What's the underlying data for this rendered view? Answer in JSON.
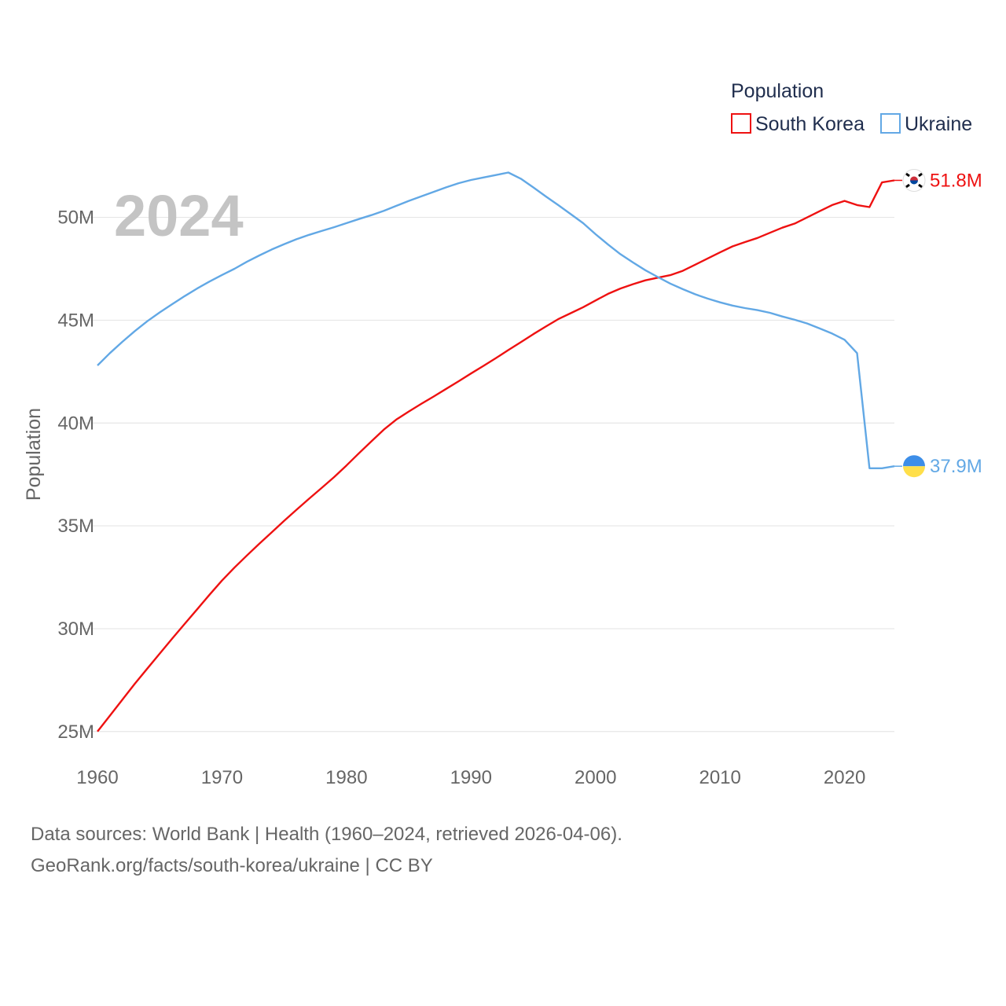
{
  "chart_data": {
    "type": "line",
    "year_label": "2024",
    "ylabel": "Population",
    "ylim": [
      23500000,
      53500000
    ],
    "xlim": [
      1960,
      2024
    ],
    "y_ticks": [
      25000000,
      30000000,
      35000000,
      40000000,
      45000000,
      50000000
    ],
    "y_tick_labels": [
      "25M",
      "30M",
      "35M",
      "40M",
      "45M",
      "50M"
    ],
    "x_ticks": [
      1960,
      1970,
      1980,
      1990,
      2000,
      2010,
      2020
    ],
    "x_tick_labels": [
      "1960",
      "1970",
      "1980",
      "1990",
      "2000",
      "2010",
      "2020"
    ],
    "legend": {
      "title": "Population",
      "position": "top-right"
    },
    "x": [
      1960,
      1961,
      1962,
      1963,
      1964,
      1965,
      1966,
      1967,
      1968,
      1969,
      1970,
      1971,
      1972,
      1973,
      1974,
      1975,
      1976,
      1977,
      1978,
      1979,
      1980,
      1981,
      1982,
      1983,
      1984,
      1985,
      1986,
      1987,
      1988,
      1989,
      1990,
      1991,
      1992,
      1993,
      1994,
      1995,
      1996,
      1997,
      1998,
      1999,
      2000,
      2001,
      2002,
      2003,
      2004,
      2005,
      2006,
      2007,
      2008,
      2009,
      2010,
      2011,
      2012,
      2013,
      2014,
      2015,
      2016,
      2017,
      2018,
      2019,
      2020,
      2021,
      2022,
      2023,
      2024
    ],
    "series": [
      {
        "name": "South Korea",
        "color": "#ee1111",
        "end_label": "51.8M",
        "flag": "south-korea-flag-icon",
        "values": [
          25000000,
          25770000,
          26550000,
          27320000,
          28060000,
          28790000,
          29520000,
          30230000,
          30940000,
          31650000,
          32340000,
          32970000,
          33560000,
          34130000,
          34690000,
          35250000,
          35790000,
          36320000,
          36840000,
          37370000,
          37940000,
          38530000,
          39110000,
          39680000,
          40170000,
          40560000,
          40930000,
          41290000,
          41660000,
          42030000,
          42410000,
          42780000,
          43160000,
          43550000,
          43930000,
          44320000,
          44690000,
          45050000,
          45340000,
          45630000,
          45960000,
          46280000,
          46540000,
          46750000,
          46940000,
          47070000,
          47190000,
          47400000,
          47700000,
          48000000,
          48300000,
          48590000,
          48800000,
          49000000,
          49250000,
          49500000,
          49700000,
          50000000,
          50300000,
          50600000,
          50800000,
          50600000,
          50500000,
          51700000,
          51800000
        ]
      },
      {
        "name": "Ukraine",
        "color": "#62a8e5",
        "end_label": "37.9M",
        "flag": "ukraine-flag-icon",
        "values": [
          42800000,
          43400000,
          43950000,
          44470000,
          44950000,
          45380000,
          45780000,
          46170000,
          46540000,
          46880000,
          47200000,
          47500000,
          47840000,
          48150000,
          48440000,
          48700000,
          48940000,
          49150000,
          49340000,
          49520000,
          49720000,
          49920000,
          50110000,
          50320000,
          50560000,
          50800000,
          51020000,
          51240000,
          51460000,
          51660000,
          51820000,
          51940000,
          52060000,
          52180000,
          51880000,
          51460000,
          51020000,
          50600000,
          50160000,
          49720000,
          49180000,
          48680000,
          48210000,
          47810000,
          47430000,
          47100000,
          46780000,
          46510000,
          46260000,
          46050000,
          45870000,
          45710000,
          45590000,
          45490000,
          45360000,
          45180000,
          45020000,
          44840000,
          44600000,
          44350000,
          44050000,
          43400000,
          37800000,
          37800000,
          37900000
        ]
      }
    ]
  },
  "footer": {
    "line1": "Data sources: World Bank | Health (1960–2024, retrieved 2026-04-06).",
    "line2": "GeoRank.org/facts/south-korea/ukraine | CC BY"
  }
}
